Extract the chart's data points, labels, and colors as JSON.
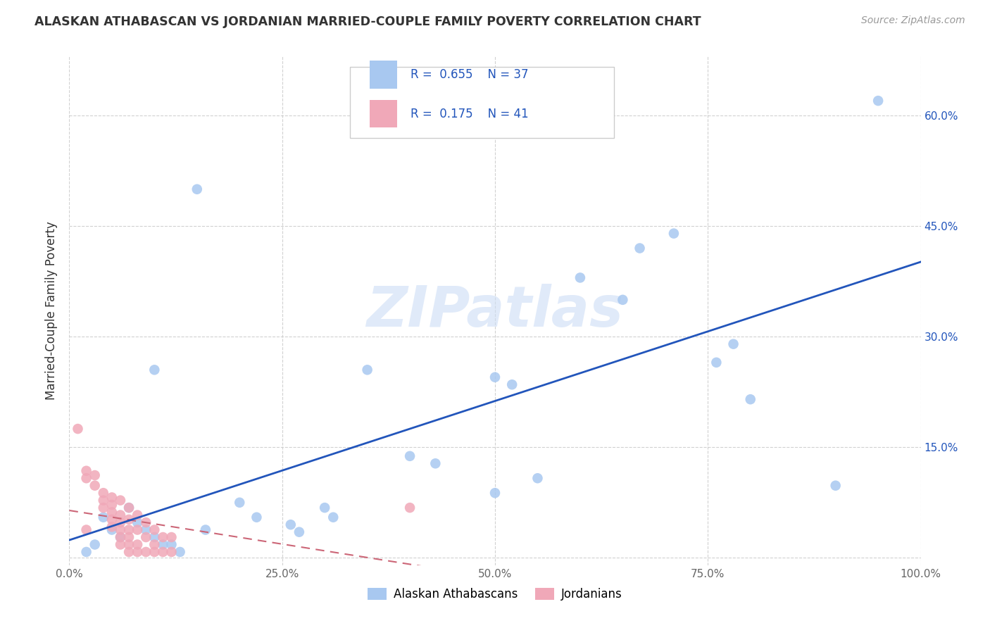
{
  "title": "ALASKAN ATHABASCAN VS JORDANIAN MARRIED-COUPLE FAMILY POVERTY CORRELATION CHART",
  "source": "Source: ZipAtlas.com",
  "ylabel": "Married-Couple Family Poverty",
  "xlim": [
    0,
    1.0
  ],
  "ylim": [
    -0.01,
    0.68
  ],
  "xticks": [
    0.0,
    0.25,
    0.5,
    0.75,
    1.0
  ],
  "xtick_labels": [
    "0.0%",
    "25.0%",
    "50.0%",
    "75.0%",
    "100.0%"
  ],
  "yticks": [
    0.0,
    0.15,
    0.3,
    0.45,
    0.6
  ],
  "ytick_labels": [
    "",
    "15.0%",
    "30.0%",
    "45.0%",
    "60.0%"
  ],
  "blue_R": "0.655",
  "blue_N": "37",
  "pink_R": "0.175",
  "pink_N": "41",
  "blue_color": "#a8c8f0",
  "pink_color": "#f0a8b8",
  "blue_line_color": "#2255bb",
  "pink_line_color": "#cc6677",
  "blue_scatter": [
    [
      0.95,
      0.62
    ],
    [
      0.15,
      0.5
    ],
    [
      0.67,
      0.42
    ],
    [
      0.71,
      0.44
    ],
    [
      0.6,
      0.38
    ],
    [
      0.65,
      0.35
    ],
    [
      0.78,
      0.29
    ],
    [
      0.76,
      0.265
    ],
    [
      0.8,
      0.215
    ],
    [
      0.5,
      0.245
    ],
    [
      0.52,
      0.235
    ],
    [
      0.35,
      0.255
    ],
    [
      0.1,
      0.255
    ],
    [
      0.4,
      0.138
    ],
    [
      0.43,
      0.128
    ],
    [
      0.5,
      0.088
    ],
    [
      0.55,
      0.108
    ],
    [
      0.9,
      0.098
    ],
    [
      0.2,
      0.075
    ],
    [
      0.22,
      0.055
    ],
    [
      0.26,
      0.045
    ],
    [
      0.27,
      0.035
    ],
    [
      0.07,
      0.068
    ],
    [
      0.08,
      0.048
    ],
    [
      0.09,
      0.038
    ],
    [
      0.1,
      0.028
    ],
    [
      0.11,
      0.018
    ],
    [
      0.12,
      0.018
    ],
    [
      0.13,
      0.008
    ],
    [
      0.04,
      0.055
    ],
    [
      0.05,
      0.038
    ],
    [
      0.06,
      0.028
    ],
    [
      0.03,
      0.018
    ],
    [
      0.02,
      0.008
    ],
    [
      0.16,
      0.038
    ],
    [
      0.3,
      0.068
    ],
    [
      0.31,
      0.055
    ]
  ],
  "pink_scatter": [
    [
      0.01,
      0.175
    ],
    [
      0.02,
      0.118
    ],
    [
      0.02,
      0.108
    ],
    [
      0.03,
      0.112
    ],
    [
      0.03,
      0.098
    ],
    [
      0.04,
      0.088
    ],
    [
      0.04,
      0.078
    ],
    [
      0.04,
      0.068
    ],
    [
      0.05,
      0.082
    ],
    [
      0.05,
      0.072
    ],
    [
      0.05,
      0.062
    ],
    [
      0.05,
      0.052
    ],
    [
      0.05,
      0.042
    ],
    [
      0.06,
      0.078
    ],
    [
      0.06,
      0.058
    ],
    [
      0.06,
      0.048
    ],
    [
      0.06,
      0.038
    ],
    [
      0.06,
      0.028
    ],
    [
      0.06,
      0.018
    ],
    [
      0.07,
      0.068
    ],
    [
      0.07,
      0.052
    ],
    [
      0.07,
      0.038
    ],
    [
      0.07,
      0.028
    ],
    [
      0.07,
      0.018
    ],
    [
      0.07,
      0.008
    ],
    [
      0.08,
      0.058
    ],
    [
      0.08,
      0.038
    ],
    [
      0.08,
      0.018
    ],
    [
      0.08,
      0.008
    ],
    [
      0.09,
      0.048
    ],
    [
      0.09,
      0.028
    ],
    [
      0.09,
      0.008
    ],
    [
      0.1,
      0.038
    ],
    [
      0.1,
      0.018
    ],
    [
      0.1,
      0.008
    ],
    [
      0.11,
      0.028
    ],
    [
      0.11,
      0.008
    ],
    [
      0.12,
      0.028
    ],
    [
      0.12,
      0.008
    ],
    [
      0.4,
      0.068
    ],
    [
      0.02,
      0.038
    ]
  ],
  "grid_color": "#cccccc",
  "background_color": "#ffffff",
  "watermark": "ZIPatlas",
  "legend_blue_label": "Alaskan Athabascans",
  "legend_pink_label": "Jordanians"
}
